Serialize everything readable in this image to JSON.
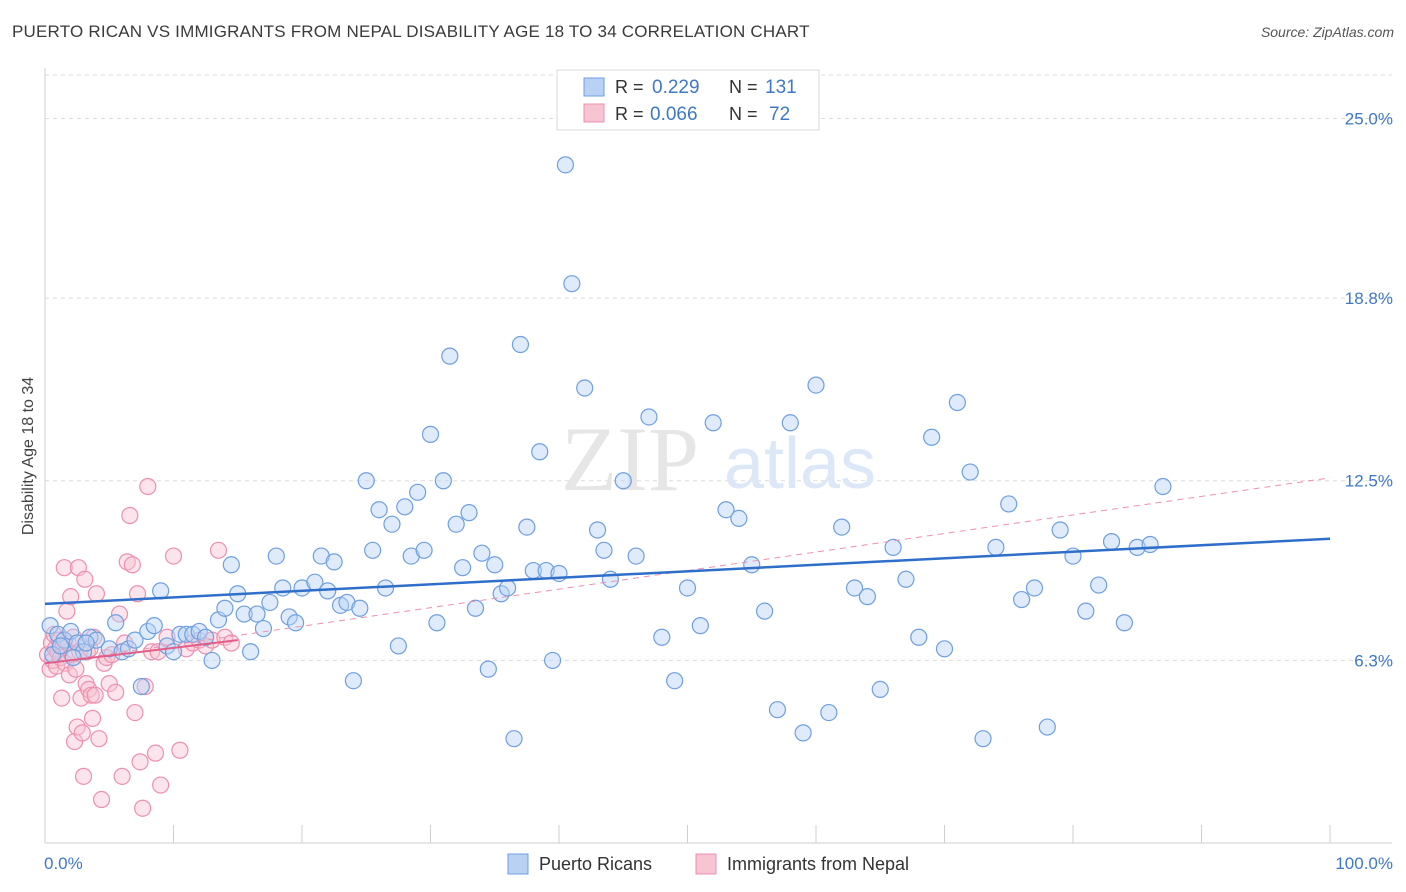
{
  "title": "PUERTO RICAN VS IMMIGRANTS FROM NEPAL DISABILITY AGE 18 TO 34 CORRELATION CHART",
  "source": "Source: ZipAtlas.com",
  "watermark": {
    "zip": "ZIP",
    "atlas": "atlas"
  },
  "colors": {
    "blue": "#2f6fc9",
    "blue_fill": "#b9d2f3",
    "blue_stroke": "#6e9fe0",
    "pink": "#e25d87",
    "pink_fill": "#f7c4d3",
    "pink_stroke": "#ee8fae",
    "tick": "#3f78c6",
    "grid": "#dcdcdc"
  },
  "legend": {
    "rows": [
      {
        "r_label": "R =",
        "r_value": "0.229",
        "n_label": "N =",
        "n_value": "131"
      },
      {
        "r_label": "R =",
        "r_value": "0.066",
        "n_label": "N =",
        "n_value": "72"
      }
    ]
  },
  "chart_data": {
    "type": "scatter",
    "title": "PUERTO RICAN VS IMMIGRANTS FROM NEPAL DISABILITY AGE 18 TO 34 CORRELATION CHART",
    "xlabel": "",
    "ylabel": "Disability Age 18 to 34",
    "xlim": [
      0,
      100
    ],
    "ylim": [
      0,
      26.5
    ],
    "x_tick_labels": [
      "0.0%",
      "100.0%"
    ],
    "y_ticks": [
      6.3,
      12.5,
      18.8,
      25.0
    ],
    "y_tick_labels": [
      "6.3%",
      "12.5%",
      "18.8%",
      "25.0%"
    ],
    "grid": "horizontal dashed",
    "legend_position": "bottom",
    "series": [
      {
        "name": "Puerto Ricans",
        "color": "blue",
        "trend": {
          "x": [
            0,
            100
          ],
          "y": [
            8.25,
            10.5
          ],
          "style": "solid"
        },
        "points": [
          [
            0.4,
            7.5
          ],
          [
            1.0,
            7.2
          ],
          [
            1.5,
            7.0
          ],
          [
            2.0,
            7.3
          ],
          [
            2.5,
            6.9
          ],
          [
            3.0,
            6.6
          ],
          [
            3.5,
            7.1
          ],
          [
            4.0,
            7.0
          ],
          [
            5.0,
            6.7
          ],
          [
            5.5,
            7.6
          ],
          [
            6.0,
            6.6
          ],
          [
            6.5,
            6.7
          ],
          [
            7.0,
            7.0
          ],
          [
            7.5,
            5.4
          ],
          [
            8.0,
            7.3
          ],
          [
            8.5,
            7.5
          ],
          [
            9.0,
            8.7
          ],
          [
            9.5,
            6.8
          ],
          [
            10.0,
            6.6
          ],
          [
            10.5,
            7.2
          ],
          [
            11.0,
            7.2
          ],
          [
            11.5,
            7.2
          ],
          [
            12.0,
            7.3
          ],
          [
            12.5,
            7.1
          ],
          [
            13.0,
            6.3
          ],
          [
            13.5,
            7.7
          ],
          [
            14.0,
            8.1
          ],
          [
            14.5,
            9.6
          ],
          [
            15.0,
            8.6
          ],
          [
            15.5,
            7.9
          ],
          [
            16.0,
            6.6
          ],
          [
            16.5,
            7.9
          ],
          [
            17.0,
            7.4
          ],
          [
            17.5,
            8.3
          ],
          [
            18.0,
            9.9
          ],
          [
            18.5,
            8.8
          ],
          [
            19.0,
            7.8
          ],
          [
            19.5,
            7.6
          ],
          [
            20.0,
            8.8
          ],
          [
            21.0,
            9.0
          ],
          [
            21.5,
            9.9
          ],
          [
            22.0,
            8.7
          ],
          [
            22.5,
            9.7
          ],
          [
            23.0,
            8.2
          ],
          [
            23.5,
            8.3
          ],
          [
            24.0,
            5.6
          ],
          [
            24.5,
            8.1
          ],
          [
            25.0,
            12.5
          ],
          [
            25.5,
            10.1
          ],
          [
            26.0,
            11.5
          ],
          [
            26.5,
            8.8
          ],
          [
            27.0,
            11.0
          ],
          [
            27.5,
            6.8
          ],
          [
            28.0,
            11.6
          ],
          [
            28.5,
            9.9
          ],
          [
            29.0,
            12.1
          ],
          [
            29.5,
            10.1
          ],
          [
            30.0,
            14.1
          ],
          [
            30.5,
            7.6
          ],
          [
            31.0,
            12.5
          ],
          [
            31.5,
            16.8
          ],
          [
            32.0,
            11.0
          ],
          [
            32.5,
            9.5
          ],
          [
            33.0,
            11.4
          ],
          [
            33.5,
            8.1
          ],
          [
            34.0,
            10.0
          ],
          [
            34.5,
            6.0
          ],
          [
            35.0,
            9.6
          ],
          [
            35.5,
            8.6
          ],
          [
            36.0,
            8.8
          ],
          [
            36.5,
            3.6
          ],
          [
            37.0,
            17.2
          ],
          [
            37.5,
            10.9
          ],
          [
            38.0,
            9.4
          ],
          [
            38.5,
            13.5
          ],
          [
            39.0,
            9.4
          ],
          [
            39.5,
            6.3
          ],
          [
            40.0,
            9.3
          ],
          [
            40.5,
            23.4
          ],
          [
            41.0,
            19.3
          ],
          [
            42.0,
            15.7
          ],
          [
            43.0,
            10.8
          ],
          [
            43.5,
            10.1
          ],
          [
            44.0,
            9.1
          ],
          [
            45.0,
            12.5
          ],
          [
            46.0,
            9.9
          ],
          [
            47.0,
            14.7
          ],
          [
            48.0,
            7.1
          ],
          [
            49.0,
            5.6
          ],
          [
            50.0,
            8.8
          ],
          [
            51.0,
            7.5
          ],
          [
            52.0,
            14.5
          ],
          [
            53.0,
            11.5
          ],
          [
            54.0,
            11.2
          ],
          [
            55.0,
            9.6
          ],
          [
            56.0,
            8.0
          ],
          [
            57.0,
            4.6
          ],
          [
            58.0,
            14.5
          ],
          [
            59.0,
            3.8
          ],
          [
            60.0,
            15.8
          ],
          [
            61.0,
            4.5
          ],
          [
            62.0,
            10.9
          ],
          [
            63.0,
            8.8
          ],
          [
            64.0,
            8.5
          ],
          [
            65.0,
            5.3
          ],
          [
            66.0,
            10.2
          ],
          [
            67.0,
            9.1
          ],
          [
            68.0,
            7.1
          ],
          [
            69.0,
            14.0
          ],
          [
            70.0,
            6.7
          ],
          [
            71.0,
            15.2
          ],
          [
            72.0,
            12.8
          ],
          [
            73.0,
            3.6
          ],
          [
            74.0,
            10.2
          ],
          [
            75.0,
            11.7
          ],
          [
            76.0,
            8.4
          ],
          [
            77.0,
            8.8
          ],
          [
            78.0,
            4.0
          ],
          [
            79.0,
            10.8
          ],
          [
            80.0,
            9.9
          ],
          [
            81.0,
            8.0
          ],
          [
            82.0,
            8.9
          ],
          [
            83.0,
            10.4
          ],
          [
            84.0,
            7.6
          ],
          [
            85.0,
            10.2
          ],
          [
            86.0,
            10.3
          ],
          [
            87.0,
            12.3
          ],
          [
            0.6,
            6.5
          ],
          [
            1.2,
            6.8
          ],
          [
            2.2,
            6.4
          ],
          [
            3.2,
            6.9
          ]
        ]
      },
      {
        "name": "Immigrants from Nepal",
        "color": "pink",
        "trend": {
          "x": [
            0,
            15
          ],
          "y": [
            6.2,
            7.0
          ],
          "style": "solid",
          "extended": {
            "x": [
              0,
              100
            ],
            "y": [
              6.2,
              12.6
            ],
            "style": "dashed"
          }
        },
        "points": [
          [
            0.2,
            6.5
          ],
          [
            0.4,
            6.0
          ],
          [
            0.5,
            6.9
          ],
          [
            0.6,
            6.3
          ],
          [
            0.7,
            7.2
          ],
          [
            0.8,
            6.7
          ],
          [
            0.9,
            6.1
          ],
          [
            1.0,
            6.6
          ],
          [
            1.1,
            7.0
          ],
          [
            1.2,
            6.4
          ],
          [
            1.3,
            5.0
          ],
          [
            1.4,
            6.8
          ],
          [
            1.5,
            9.5
          ],
          [
            1.6,
            6.2
          ],
          [
            1.7,
            8.0
          ],
          [
            1.8,
            6.9
          ],
          [
            1.9,
            5.8
          ],
          [
            2.0,
            8.5
          ],
          [
            2.1,
            6.5
          ],
          [
            2.2,
            7.1
          ],
          [
            2.3,
            3.5
          ],
          [
            2.4,
            6.0
          ],
          [
            2.5,
            4.0
          ],
          [
            2.6,
            9.5
          ],
          [
            2.7,
            6.6
          ],
          [
            2.8,
            5.0
          ],
          [
            2.9,
            3.8
          ],
          [
            3.0,
            2.3
          ],
          [
            3.1,
            9.1
          ],
          [
            3.2,
            5.5
          ],
          [
            3.3,
            6.6
          ],
          [
            3.4,
            5.3
          ],
          [
            3.5,
            6.7
          ],
          [
            3.6,
            5.1
          ],
          [
            3.7,
            4.3
          ],
          [
            3.8,
            7.1
          ],
          [
            3.9,
            5.1
          ],
          [
            4.0,
            8.6
          ],
          [
            4.2,
            3.6
          ],
          [
            4.4,
            1.5
          ],
          [
            4.6,
            6.2
          ],
          [
            4.8,
            6.4
          ],
          [
            5.0,
            5.5
          ],
          [
            5.2,
            6.5
          ],
          [
            5.5,
            5.2
          ],
          [
            5.8,
            7.9
          ],
          [
            6.0,
            2.3
          ],
          [
            6.2,
            6.9
          ],
          [
            6.4,
            9.7
          ],
          [
            6.6,
            11.3
          ],
          [
            6.8,
            9.6
          ],
          [
            7.0,
            4.5
          ],
          [
            7.2,
            8.6
          ],
          [
            7.4,
            2.8
          ],
          [
            7.6,
            1.2
          ],
          [
            7.8,
            5.4
          ],
          [
            8.0,
            12.3
          ],
          [
            8.3,
            6.6
          ],
          [
            8.6,
            3.1
          ],
          [
            8.8,
            6.6
          ],
          [
            9.0,
            2.0
          ],
          [
            9.5,
            7.1
          ],
          [
            10.0,
            9.9
          ],
          [
            10.5,
            3.2
          ],
          [
            11.0,
            6.7
          ],
          [
            11.5,
            6.9
          ],
          [
            12.0,
            7.0
          ],
          [
            12.5,
            6.8
          ],
          [
            13.0,
            7.0
          ],
          [
            13.5,
            10.1
          ],
          [
            14.0,
            7.1
          ],
          [
            14.5,
            6.9
          ]
        ]
      }
    ]
  },
  "bottom_legend": [
    {
      "label": "Puerto Ricans",
      "color": "blue"
    },
    {
      "label": "Immigrants from Nepal",
      "color": "pink"
    }
  ]
}
